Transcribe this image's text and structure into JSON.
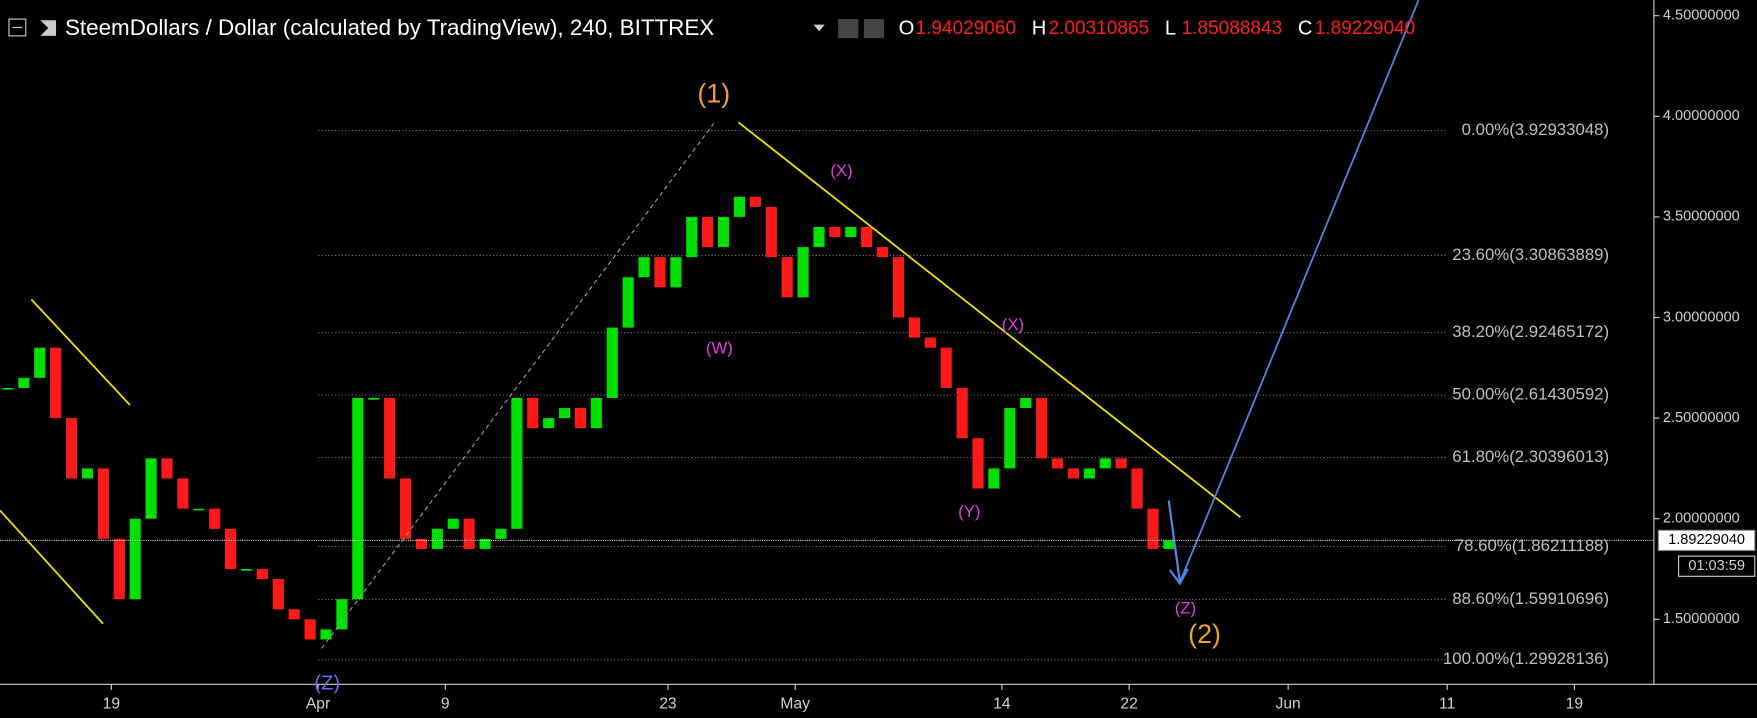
{
  "chart_data": {
    "type": "candlestick",
    "title": "SteemDollars / Dollar (calculated by TradingView), 240, BITTREX",
    "ohlc": [
      {
        "key": "O",
        "value": "1.94029060"
      },
      {
        "key": "H",
        "value": "2.00310865"
      },
      {
        "key": "L",
        "value": "1.85088843"
      },
      {
        "key": "C",
        "value": "1.89229040"
      }
    ],
    "x": [
      "Mar 12",
      "Mar 13",
      "Mar 14",
      "Mar 15",
      "Mar 16",
      "Mar 17",
      "Mar 18",
      "Mar 19",
      "Mar 20",
      "Mar 21",
      "Mar 22",
      "Mar 23",
      "Mar 24",
      "Mar 25",
      "Mar 26",
      "Mar 27",
      "Mar 28",
      "Mar 29",
      "Mar 30",
      "Mar 31",
      "Apr 1",
      "Apr 2",
      "Apr 3",
      "Apr 4",
      "Apr 5",
      "Apr 6",
      "Apr 7",
      "Apr 8",
      "Apr 9",
      "Apr 10",
      "Apr 11",
      "Apr 12",
      "Apr 13",
      "Apr 14",
      "Apr 15",
      "Apr 16",
      "Apr 17",
      "Apr 18",
      "Apr 19",
      "Apr 20",
      "Apr 21",
      "Apr 22",
      "Apr 23",
      "Apr 24",
      "Apr 25",
      "Apr 26",
      "Apr 27",
      "Apr 28",
      "Apr 29",
      "Apr 30",
      "May 1",
      "May 2",
      "May 3",
      "May 4",
      "May 5",
      "May 6",
      "May 7",
      "May 8",
      "May 9",
      "May 10",
      "May 11",
      "May 12",
      "May 13",
      "May 14",
      "May 15",
      "May 16",
      "May 17",
      "May 18",
      "May 19",
      "May 20",
      "May 21",
      "May 22",
      "May 23",
      "May 24"
    ],
    "values": [
      2.65,
      2.7,
      2.85,
      2.5,
      2.2,
      2.25,
      1.9,
      1.6,
      2.0,
      2.3,
      2.2,
      2.05,
      2.05,
      1.95,
      1.75,
      1.75,
      1.7,
      1.55,
      1.5,
      1.4,
      1.45,
      1.6,
      2.6,
      2.6,
      2.2,
      1.9,
      1.85,
      1.95,
      2.0,
      1.85,
      1.9,
      1.95,
      2.6,
      2.45,
      2.5,
      2.55,
      2.45,
      2.6,
      2.95,
      3.2,
      3.3,
      3.15,
      3.3,
      3.5,
      3.35,
      3.5,
      3.6,
      3.55,
      3.3,
      3.1,
      3.35,
      3.45,
      3.4,
      3.45,
      3.35,
      3.3,
      3.0,
      2.9,
      2.85,
      2.65,
      2.4,
      2.15,
      2.25,
      2.55,
      2.6,
      2.3,
      2.25,
      2.2,
      2.25,
      2.3,
      2.25,
      2.05,
      1.85,
      1.8922904
    ],
    "up_color": "#00e000",
    "down_color": "#ff1a1a",
    "xlim": [
      "Mar 12",
      "Jun 24"
    ],
    "xticks": [
      {
        "value": "Mar 19",
        "label": "19"
      },
      {
        "value": "Apr 1",
        "label": "Apr"
      },
      {
        "value": "Apr 9",
        "label": "9"
      },
      {
        "value": "Apr 23",
        "label": "23"
      },
      {
        "value": "May 1",
        "label": "May"
      },
      {
        "value": "May 14",
        "label": "14"
      },
      {
        "value": "May 22",
        "label": "22"
      },
      {
        "value": "Jun 1",
        "label": "Jun"
      },
      {
        "value": "Jun 11",
        "label": "11"
      },
      {
        "value": "Jun 19",
        "label": "19"
      }
    ],
    "ylim": [
      1.188,
      4.578
    ],
    "yticks": [
      {
        "value": 1.5,
        "label": "1.50000000"
      },
      {
        "value": 2.0,
        "label": "2.00000000"
      },
      {
        "value": 2.5,
        "label": "2.50000000"
      },
      {
        "value": 3.0,
        "label": "3.00000000"
      },
      {
        "value": 3.5,
        "label": "3.50000000"
      },
      {
        "value": 4.0,
        "label": "4.00000000"
      },
      {
        "value": 4.5,
        "label": "4.50000000"
      }
    ],
    "fib_levels": [
      {
        "value": 3.92933048,
        "label": "0.00%(3.92933048)"
      },
      {
        "value": 3.30863889,
        "label": "23.60%(3.30863889)"
      },
      {
        "value": 2.92465172,
        "label": "38.20%(2.92465172)"
      },
      {
        "value": 2.61430592,
        "label": "50.00%(2.61430592)"
      },
      {
        "value": 2.30396013,
        "label": "61.80%(2.30396013)"
      },
      {
        "value": 1.86211188,
        "label": "78.60%(1.86211188)"
      },
      {
        "value": 1.59910696,
        "label": "88.60%(1.59910696)"
      },
      {
        "value": 1.29928136,
        "label": "100.00%(1.29928136)"
      }
    ],
    "last_price": {
      "value": 1.8922904,
      "label": "1.89229040"
    },
    "countdown": "01:03:59",
    "annotations": [
      "(1)",
      "(2)",
      "(X)",
      "(W)",
      "(X)",
      "(Y)",
      "(Z)",
      "(Z)"
    ]
  }
}
